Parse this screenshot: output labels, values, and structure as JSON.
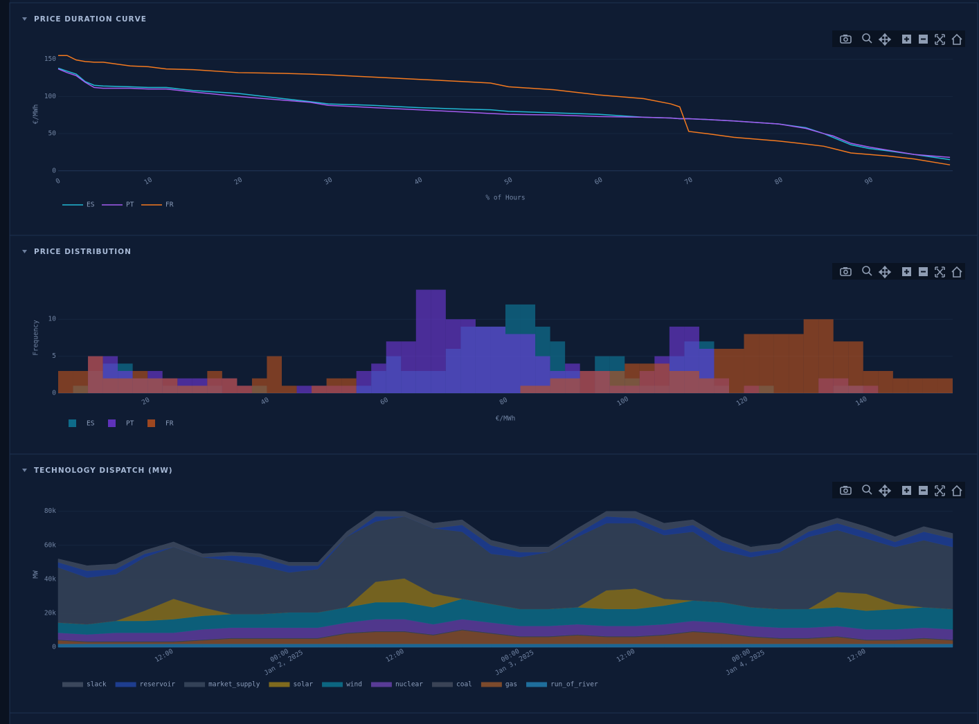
{
  "chart_data": [
    {
      "type": "line",
      "title": "PRICE DURATION CURVE",
      "xlabel": "% of Hours",
      "ylabel": "€/MWh",
      "x": [
        0,
        1,
        2,
        3,
        4,
        5,
        8,
        10,
        12,
        15,
        20,
        25,
        28,
        30,
        35,
        40,
        45,
        48,
        50,
        55,
        60,
        65,
        68,
        69,
        70,
        72,
        75,
        80,
        83,
        85,
        86,
        88,
        90,
        92,
        95,
        99
      ],
      "series": [
        {
          "name": "ES",
          "color": "#22b8d4",
          "values": [
            138,
            134,
            130,
            120,
            115,
            114,
            113,
            112,
            112,
            108,
            104,
            97,
            93,
            90,
            88,
            85,
            83,
            82,
            80,
            78,
            76,
            72,
            71,
            70,
            70,
            69,
            67,
            63,
            58,
            50,
            45,
            35,
            30,
            27,
            22,
            15
          ]
        },
        {
          "name": "PT",
          "color": "#a45cf0",
          "values": [
            137,
            132,
            128,
            119,
            112,
            111,
            111,
            110,
            110,
            106,
            100,
            95,
            92,
            88,
            85,
            82,
            79,
            77,
            76,
            75,
            73,
            72,
            71,
            70,
            70,
            69,
            67,
            63,
            57,
            50,
            47,
            37,
            32,
            28,
            22,
            18
          ]
        },
        {
          "name": "FR",
          "color": "#f57a1f",
          "values": [
            155,
            155,
            149,
            147,
            146,
            146,
            141,
            140,
            137,
            136,
            132,
            131,
            130,
            129,
            126,
            123,
            120,
            118,
            113,
            109,
            102,
            97,
            90,
            86,
            53,
            50,
            45,
            40,
            36,
            33,
            30,
            24,
            22,
            20,
            16,
            8
          ]
        }
      ],
      "xlim": [
        0,
        99.3
      ],
      "xticks": [
        0,
        10,
        20,
        30,
        40,
        50,
        60,
        70,
        80,
        90
      ],
      "ylim": [
        -3,
        158
      ],
      "yticks": [
        0,
        50,
        100,
        150
      ],
      "grid": true
    },
    {
      "type": "histogram",
      "title": "PRICE DISTRIBUTION",
      "xlabel": "€/MWh",
      "ylabel": "Frequency",
      "bins": [
        5.3,
        7.8,
        10.3,
        12.8,
        15.3,
        17.8,
        20.3,
        22.8,
        25.3,
        27.8,
        30.3,
        32.8,
        35.3,
        37.8,
        40.3,
        42.8,
        45.3,
        47.8,
        50.3,
        52.8,
        55.3,
        57.8,
        60.3,
        62.8,
        65.3,
        67.8,
        70.3,
        72.8,
        75.3,
        77.8,
        80.3,
        82.8,
        85.3,
        87.8,
        90.3,
        92.8,
        95.3,
        97.8,
        100.3,
        102.8,
        105.3,
        107.8,
        110.3,
        112.8,
        115.3,
        117.8,
        120.3,
        122.8,
        125.3,
        127.8,
        130.3,
        132.8,
        135.3,
        137.8,
        140.3,
        142.8,
        145.3,
        147.8,
        150.3,
        152.8,
        155.3
      ],
      "opacity": 0.6,
      "series": [
        {
          "name": "ES",
          "color": "#0e7fa0",
          "values": [
            0,
            1,
            3,
            4,
            4,
            2,
            2,
            1,
            1,
            1,
            1,
            0,
            0,
            1,
            0,
            0,
            0,
            0,
            0,
            0,
            1,
            3,
            5,
            3,
            3,
            3,
            6,
            9,
            9,
            9,
            12,
            12,
            9,
            7,
            3,
            0,
            5,
            5,
            2,
            1,
            1,
            5,
            7,
            7,
            1,
            0,
            0,
            1,
            0,
            0,
            0,
            0,
            1,
            1,
            0,
            0,
            0,
            0,
            0,
            0
          ]
        },
        {
          "name": "PT",
          "color": "#7238dc",
          "values": [
            0,
            0,
            5,
            5,
            3,
            2,
            3,
            2,
            2,
            2,
            2,
            2,
            1,
            0,
            0,
            0,
            1,
            1,
            1,
            1,
            3,
            4,
            7,
            7,
            14,
            14,
            10,
            10,
            9,
            9,
            8,
            8,
            5,
            3,
            4,
            3,
            3,
            1,
            1,
            3,
            5,
            9,
            9,
            6,
            2,
            0,
            1,
            0,
            0,
            0,
            0,
            2,
            2,
            1,
            1,
            0,
            0,
            0,
            0,
            0
          ]
        },
        {
          "name": "FR",
          "color": "#c2531c",
          "values": [
            3,
            3,
            5,
            2,
            2,
            3,
            2,
            2,
            1,
            1,
            3,
            2,
            1,
            2,
            5,
            1,
            0,
            1,
            2,
            2,
            0,
            0,
            0,
            0,
            0,
            0,
            0,
            0,
            0,
            0,
            0,
            1,
            1,
            2,
            2,
            3,
            3,
            3,
            4,
            4,
            4,
            3,
            3,
            2,
            6,
            6,
            8,
            8,
            8,
            8,
            10,
            10,
            7,
            7,
            3,
            3,
            2,
            2,
            2,
            2
          ]
        }
      ],
      "xlim": [
        5.3,
        155.3
      ],
      "xticks": [
        20,
        40,
        60,
        80,
        100,
        120,
        140
      ],
      "ylim": [
        0,
        14.8
      ],
      "yticks": [
        0,
        5,
        10
      ],
      "grid": true
    },
    {
      "type": "area",
      "title": "TECHNOLOGY DISPATCH (MW)",
      "ylabel": "MW",
      "x": [
        "2025-01-01 01:00",
        "2025-01-01 04:00",
        "2025-01-01 07:00",
        "2025-01-01 10:00",
        "2025-01-01 13:00",
        "2025-01-01 16:00",
        "2025-01-01 19:00",
        "2025-01-01 22:00",
        "2025-01-02 01:00",
        "2025-01-02 04:00",
        "2025-01-02 07:00",
        "2025-01-02 10:00",
        "2025-01-02 13:00",
        "2025-01-02 16:00",
        "2025-01-02 19:00",
        "2025-01-02 22:00",
        "2025-01-03 01:00",
        "2025-01-03 04:00",
        "2025-01-03 07:00",
        "2025-01-03 10:00",
        "2025-01-03 13:00",
        "2025-01-03 16:00",
        "2025-01-03 19:00",
        "2025-01-03 22:00",
        "2025-01-04 01:00",
        "2025-01-04 04:00",
        "2025-01-04 07:00",
        "2025-01-04 10:00",
        "2025-01-04 13:00",
        "2025-01-04 16:00",
        "2025-01-04 19:00",
        "2025-01-04 22:00"
      ],
      "series": [
        {
          "name": "slack",
          "color": "#3b475c",
          "values": [
            2000,
            3000,
            3000,
            2000,
            3000,
            2000,
            2000,
            2000,
            2000,
            2000,
            3000,
            3000,
            3000,
            3000,
            3000,
            3000,
            3000,
            3000,
            3000,
            3000,
            4000,
            4000,
            3000,
            3000,
            3000,
            3000,
            3000,
            3000,
            3000,
            3000,
            3000,
            3000
          ]
        },
        {
          "name": "reservoir",
          "color": "#1e3d8f",
          "values": [
            3000,
            4000,
            3000,
            2000,
            0,
            0,
            3000,
            5000,
            4000,
            2000,
            0,
            3000,
            0,
            0,
            4000,
            5000,
            3000,
            0,
            2000,
            4000,
            3000,
            3000,
            4000,
            5000,
            3000,
            2000,
            3000,
            4000,
            4000,
            3000,
            5000,
            5000
          ]
        },
        {
          "name": "market_supply",
          "color": "#334157",
          "values": [
            32500,
            27500,
            27500,
            31500,
            30500,
            29500,
            31500,
            28500,
            23500,
            25500,
            41500,
            35500,
            36500,
            38500,
            39500,
            29500,
            30500,
            33500,
            41500,
            39500,
            38500,
            37500,
            40500,
            30500,
            29500,
            33500,
            42500,
            36500,
            32500,
            33500,
            39500,
            36500
          ]
        },
        {
          "name": "solar",
          "color": "#7f6a1e",
          "values": [
            0,
            0,
            0,
            6000,
            12000,
            5000,
            0,
            0,
            0,
            0,
            0,
            12000,
            14000,
            8000,
            0,
            0,
            0,
            0,
            0,
            11000,
            12000,
            4000,
            0,
            0,
            0,
            0,
            0,
            9000,
            10000,
            3000,
            0,
            0
          ]
        },
        {
          "name": "wind",
          "color": "#0c6681",
          "values": [
            6000,
            6000,
            7000,
            7000,
            8000,
            8000,
            8000,
            8000,
            9000,
            9000,
            9000,
            10000,
            10000,
            10000,
            12000,
            11000,
            10000,
            10000,
            10000,
            10000,
            10000,
            11000,
            12000,
            12000,
            11000,
            11000,
            11000,
            11000,
            11000,
            12000,
            12000,
            12000
          ]
        },
        {
          "name": "nuclear",
          "color": "#583b96",
          "values": [
            4000,
            4000,
            5000,
            5000,
            5000,
            6000,
            6000,
            6000,
            6000,
            6000,
            6000,
            7000,
            7000,
            6000,
            6000,
            6000,
            6000,
            6000,
            6000,
            6000,
            6000,
            6000,
            6000,
            6000,
            6000,
            6000,
            6000,
            6000,
            6000,
            6000,
            6000,
            6000
          ]
        },
        {
          "name": "coal",
          "color": "#3a4356",
          "values": [
            500,
            500,
            500,
            500,
            500,
            500,
            500,
            500,
            500,
            500,
            500,
            500,
            500,
            500,
            500,
            500,
            500,
            500,
            500,
            500,
            500,
            500,
            500,
            500,
            500,
            500,
            500,
            500,
            500,
            500,
            500,
            500
          ]
        },
        {
          "name": "gas",
          "color": "#7c4a2c",
          "values": [
            2000,
            1000,
            1000,
            1000,
            1000,
            2000,
            3000,
            3000,
            3000,
            3000,
            6000,
            7000,
            7000,
            5000,
            8000,
            6000,
            4000,
            4000,
            5000,
            4000,
            4000,
            5000,
            7000,
            6000,
            4000,
            3000,
            3000,
            4000,
            2000,
            2000,
            3000,
            2000
          ]
        },
        {
          "name": "run_of_river",
          "color": "#1f6e9c",
          "values": [
            2000,
            2000,
            2000,
            2000,
            2000,
            2000,
            2000,
            2000,
            2000,
            2000,
            2000,
            2000,
            2000,
            2000,
            2000,
            2000,
            2000,
            2000,
            2000,
            2000,
            2000,
            2000,
            2000,
            2000,
            2000,
            2000,
            2000,
            2000,
            2000,
            2000,
            2000,
            2000
          ]
        }
      ],
      "xlim": [
        "2025-01-01 01:00",
        "2025-01-04 22:00"
      ],
      "xticks": [
        {
          "value": "2025-01-01 12:00",
          "label": [
            "12:00"
          ]
        },
        {
          "value": "2025-01-02 00:00",
          "label": [
            "00:00",
            "Jan 2, 2025"
          ]
        },
        {
          "value": "2025-01-02 12:00",
          "label": [
            "12:00"
          ]
        },
        {
          "value": "2025-01-03 00:00",
          "label": [
            "00:00",
            "Jan 3, 2025"
          ]
        },
        {
          "value": "2025-01-03 12:00",
          "label": [
            "12:00"
          ]
        },
        {
          "value": "2025-01-04 00:00",
          "label": [
            "00:00",
            "Jan 4, 2025"
          ]
        },
        {
          "value": "2025-01-04 12:00",
          "label": [
            "12:00"
          ]
        }
      ],
      "ylim": [
        0,
        86000
      ],
      "yticks": [
        0,
        {
          "value": 20000,
          "label": "20k"
        },
        {
          "value": 40000,
          "label": "40k"
        },
        {
          "value": 60000,
          "label": "60k"
        },
        {
          "value": 80000,
          "label": "80k"
        }
      ],
      "grid": true
    }
  ]
}
